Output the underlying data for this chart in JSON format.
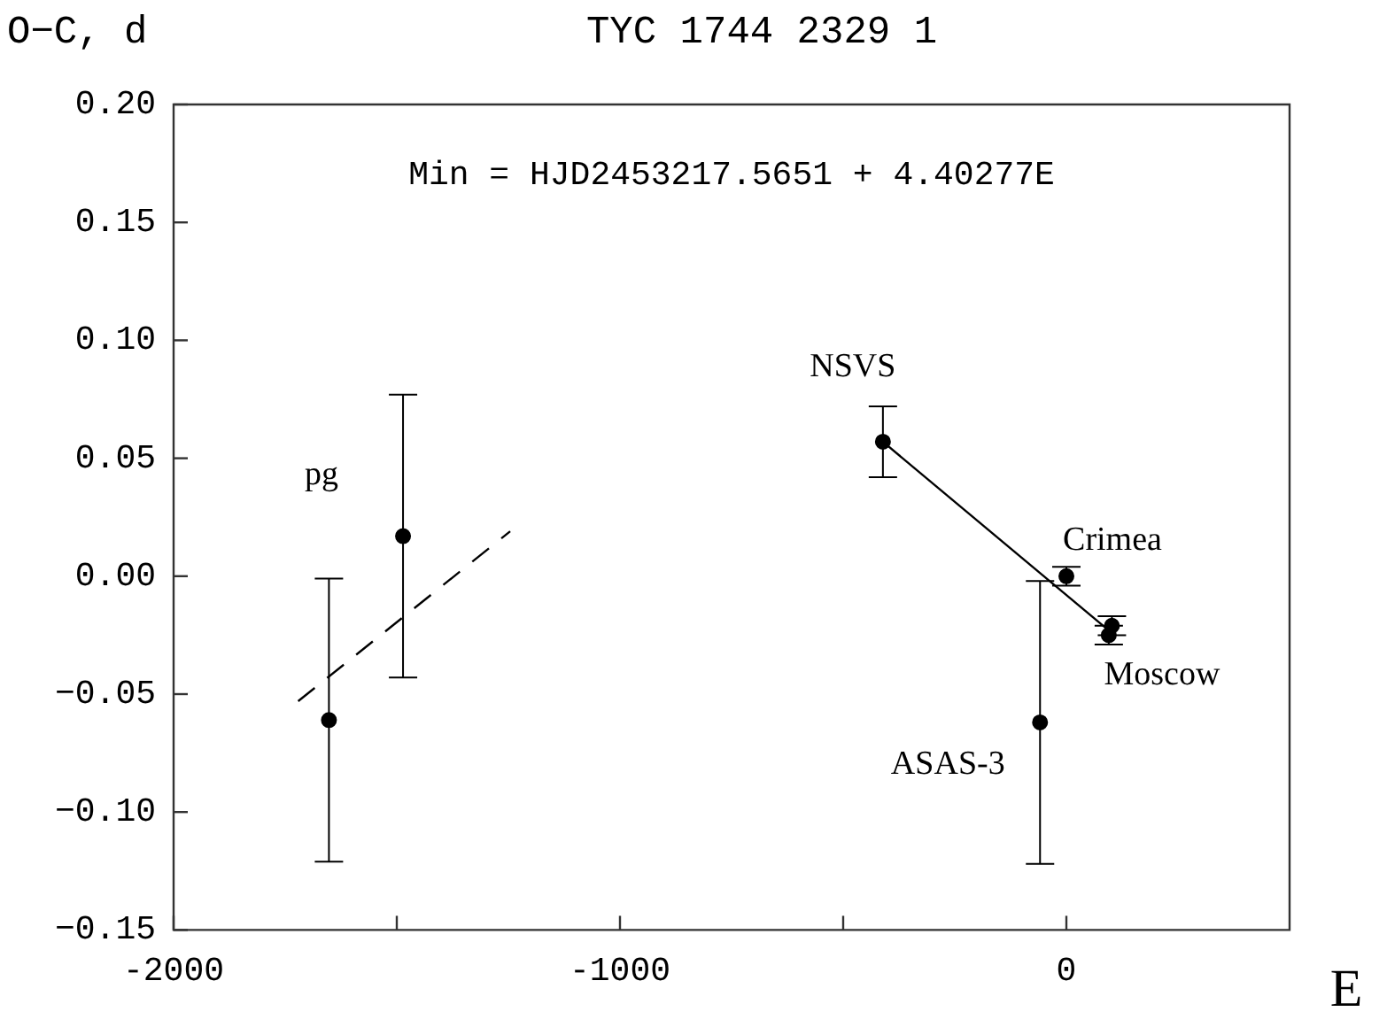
{
  "chart_data": {
    "type": "scatter",
    "title": "TYC 1744 2329 1",
    "ylabel": "O−C, d",
    "xlabel": "E",
    "xlim": [
      -2000,
      500
    ],
    "ylim": [
      -0.15,
      0.2
    ],
    "xticks": [
      -2000,
      {
        "value": -1500,
        "label": null
      },
      -1000,
      {
        "value": -500,
        "label": null
      },
      0
    ],
    "yticks": [
      {
        "value": -0.15,
        "label": "−0.15"
      },
      {
        "value": -0.1,
        "label": "−0.10"
      },
      {
        "value": -0.05,
        "label": "−0.05"
      },
      {
        "value": 0,
        "label": "0.00"
      },
      {
        "value": 0.05,
        "label": "0.05"
      },
      {
        "value": 0.1,
        "label": "0.10"
      },
      {
        "value": 0.15,
        "label": "0.15"
      },
      {
        "value": 0.2,
        "label": "0.20"
      }
    ],
    "grid": false,
    "legend": false,
    "marker": "circle",
    "series": [
      {
        "color": "#000000",
        "x": [
          -1652,
          -1486
        ],
        "values": [
          -0.061,
          0.017
        ],
        "errors": [
          0.06,
          0.06
        ]
      },
      {
        "color": "#000000",
        "x": [
          -59
        ],
        "values": [
          -0.062
        ],
        "errors": [
          0.06
        ]
      },
      {
        "color": "#000000",
        "x": [
          -411,
          0,
          95,
          102
        ],
        "values": [
          0.057,
          0.0,
          -0.025,
          -0.021
        ],
        "errors": [
          0.015,
          0.004,
          0.004,
          0.004
        ]
      },
      {
        "type": "line",
        "color": "#000000",
        "line_style": "dashed",
        "marker": "none",
        "x": [
          -1721,
          -1246
        ],
        "values": [
          -0.053,
          0.019
        ]
      },
      {
        "type": "line",
        "color": "#000000",
        "line_style": "solid",
        "marker": "none",
        "x": [
          -411,
          98
        ],
        "values": [
          0.057,
          -0.0235
        ]
      }
    ],
    "annotations": [
      "Min = HJD2453217.5651 + 4.40277E",
      {
        "text": "pg",
        "x": -1486,
        "y": 0.017
      },
      {
        "text": "NSVS",
        "x": -411,
        "y": 0.057
      },
      {
        "text": "Crimea",
        "x": 0,
        "y": 0.0
      },
      {
        "text": "Moscow",
        "x": 95,
        "y": -0.025
      },
      {
        "text": "ASAS-3",
        "x": -59,
        "y": -0.062
      }
    ]
  }
}
